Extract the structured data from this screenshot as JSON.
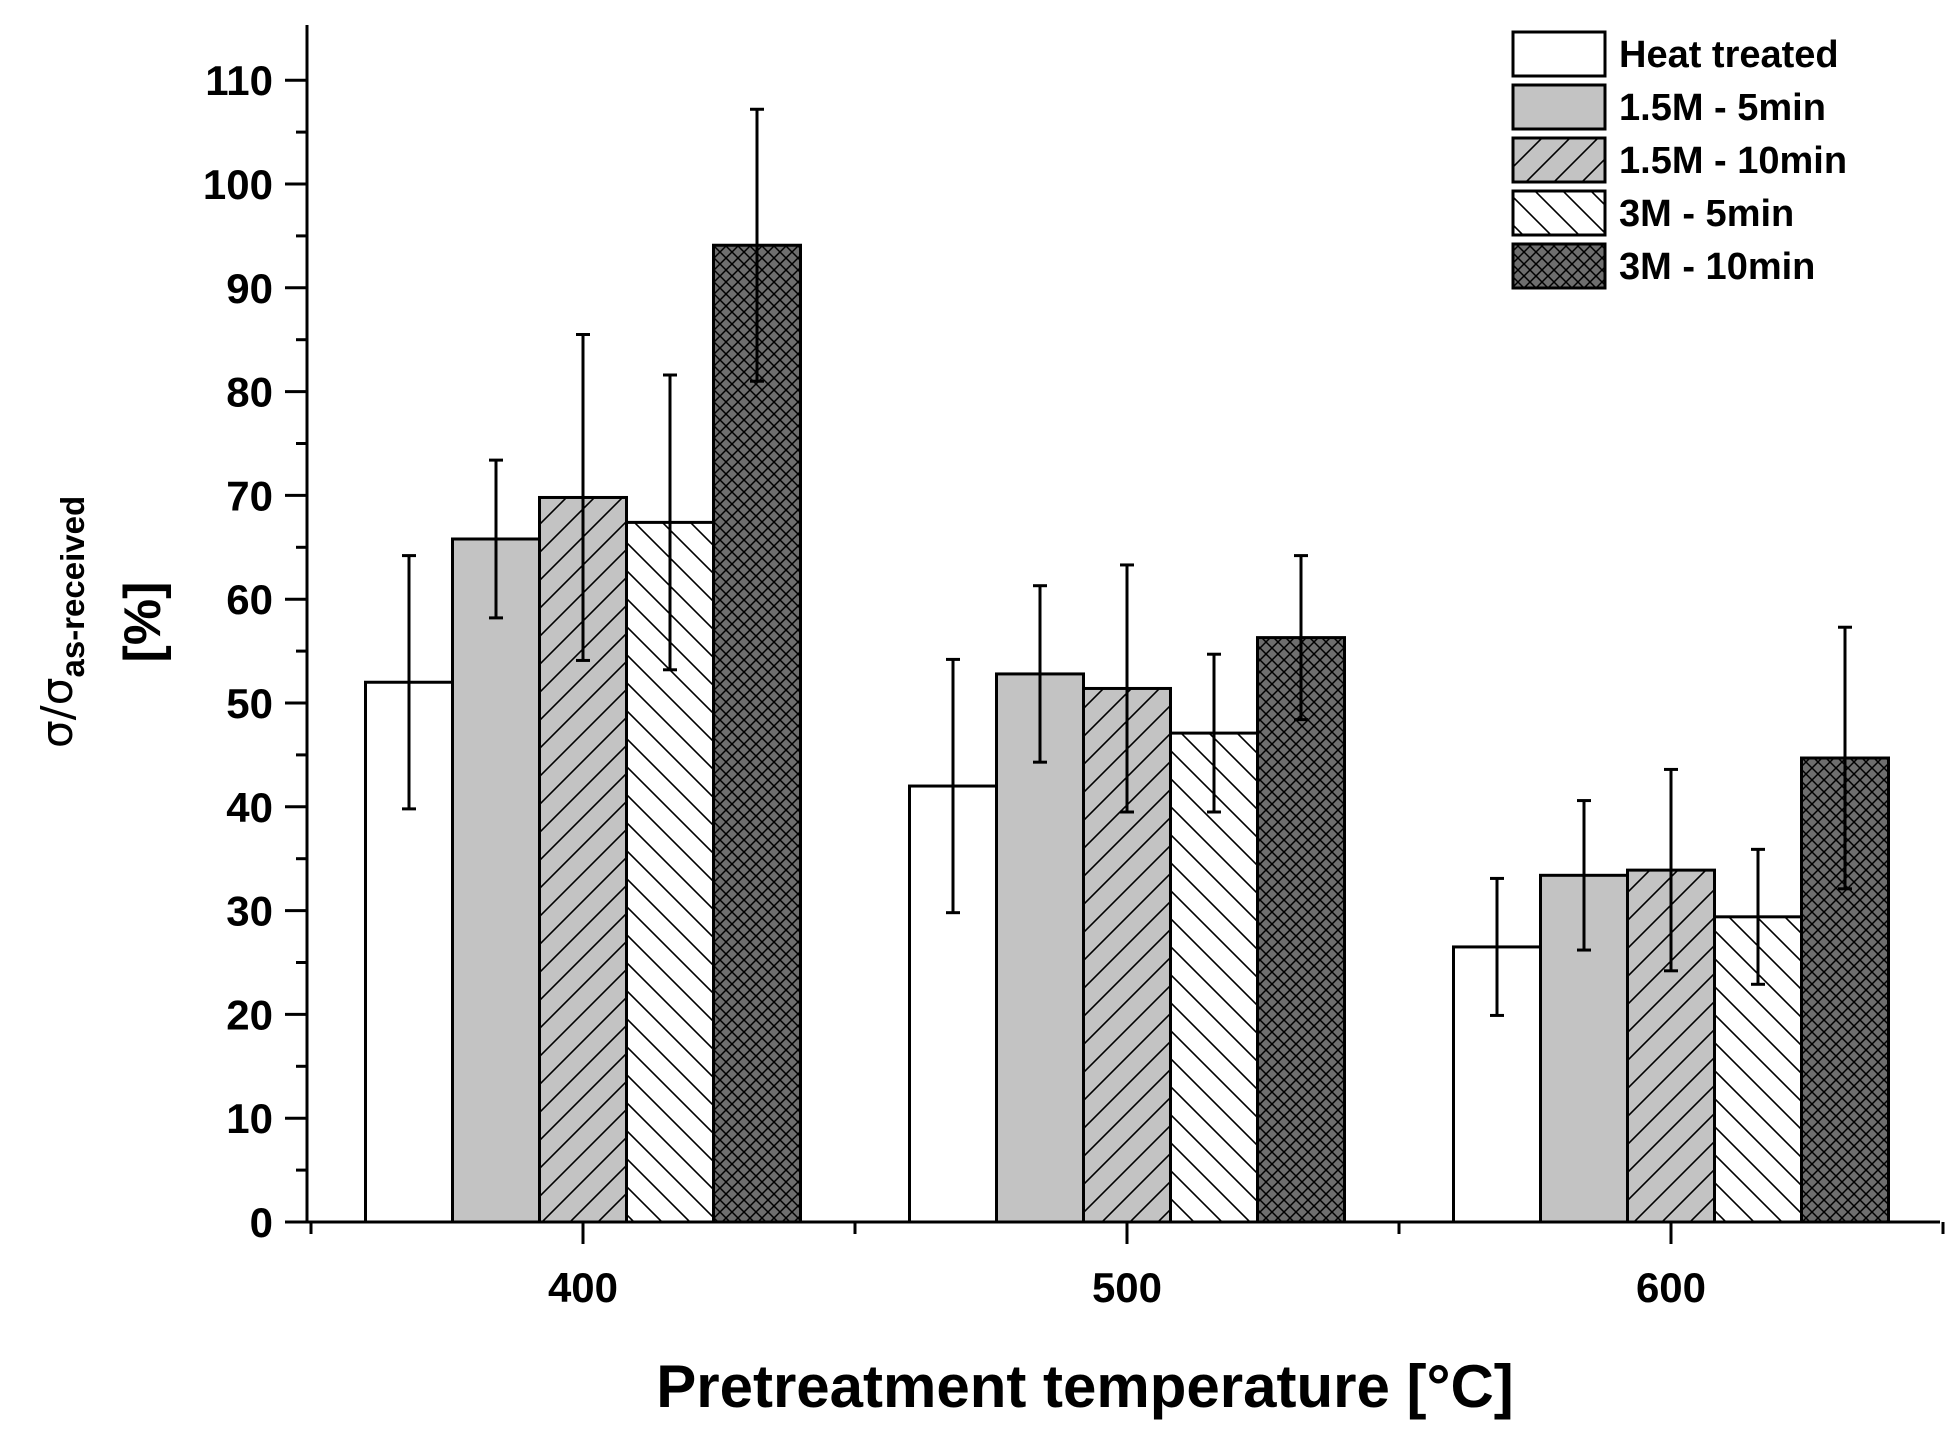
{
  "chart_data": {
    "type": "bar",
    "title": "",
    "xlabel": "Pretreatment temperature [°C]",
    "ylabel": {
      "symbol": "σ/σ",
      "subscript": "as-received",
      "unit": "[%]"
    },
    "categories": [
      "400",
      "500",
      "600"
    ],
    "ylim": [
      0,
      115
    ],
    "yticks": [
      "0",
      "10",
      "20",
      "30",
      "40",
      "50",
      "60",
      "70",
      "80",
      "90",
      "100",
      "110"
    ],
    "legend_position": "top-right",
    "series": [
      {
        "name": "Heat treated",
        "pattern": "none",
        "fill": "#ffffff",
        "values": [
          52.0,
          42.0,
          26.5
        ],
        "errors": [
          12.2,
          12.2,
          6.6
        ]
      },
      {
        "name": "1.5M - 5min",
        "pattern": "none",
        "fill": "#c3c3c3",
        "values": [
          65.8,
          52.8,
          33.4
        ],
        "errors": [
          7.6,
          8.5,
          7.2
        ]
      },
      {
        "name": "1.5M - 10min",
        "pattern": "diag-up",
        "fill": "#c3c3c3",
        "values": [
          69.8,
          51.4,
          33.9
        ],
        "errors": [
          15.7,
          11.9,
          9.7
        ]
      },
      {
        "name": "3M - 5min",
        "pattern": "diag-down",
        "fill": "#ffffff",
        "values": [
          67.4,
          47.1,
          29.4
        ],
        "errors": [
          14.2,
          7.6,
          6.5
        ]
      },
      {
        "name": "3M - 10min",
        "pattern": "crosshatch",
        "fill": "#6e6e6e",
        "values": [
          94.1,
          56.3,
          44.7
        ],
        "errors": [
          13.1,
          7.9,
          12.6
        ]
      }
    ]
  }
}
